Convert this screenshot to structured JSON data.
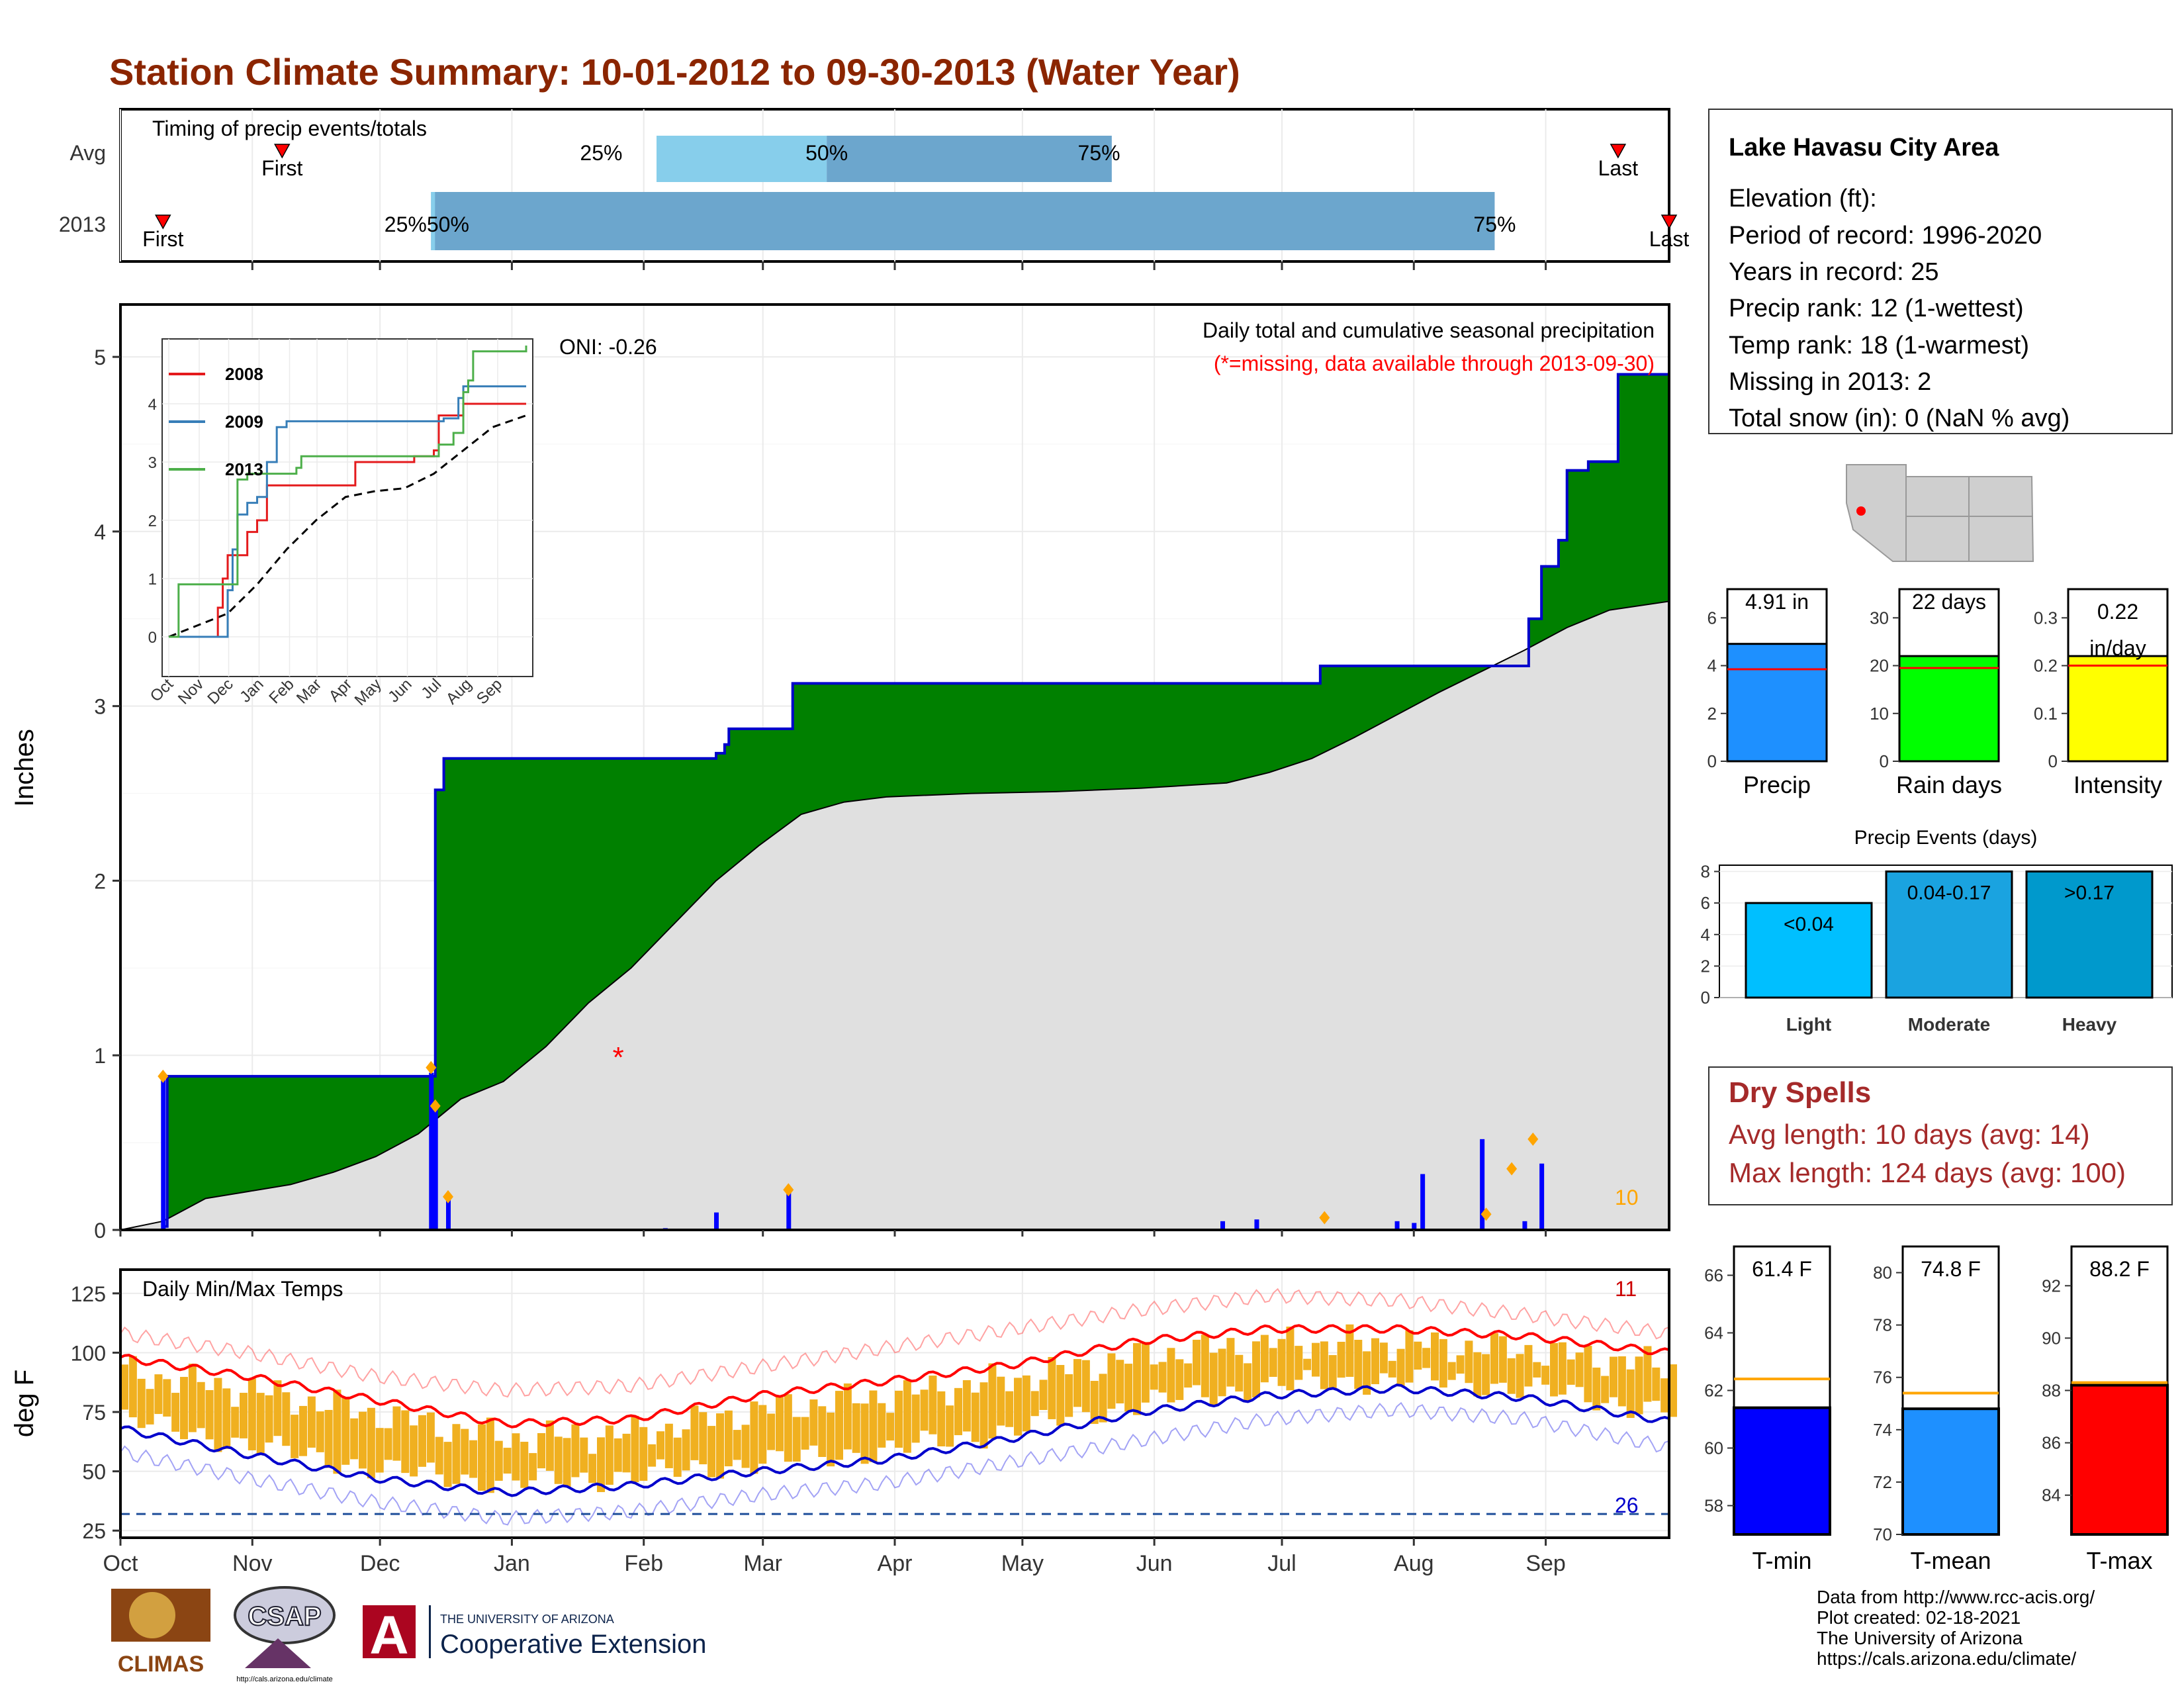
{
  "title": "Station Climate Summary: 10-01-2012 to 09-30-2013 (Water Year)",
  "colors": {
    "title": "#8b2500",
    "precip_area": "#008000",
    "normal_area": "#e0e0e0",
    "cum_line": "#0000cc",
    "bar": "#0000ff",
    "diamond": "#ffa500",
    "tmax": "#ff0000",
    "tmin": "#0000cc",
    "temp_bar": "#f0b020",
    "dry": "#a52a2a"
  },
  "timing": {
    "title": "Timing of precip events/totals",
    "rows": [
      "Avg",
      "2013"
    ],
    "avg": {
      "first_day": 38,
      "last_day": 352,
      "q25": 126,
      "q50": 166,
      "q75": 233,
      "first_label": "First",
      "last_label": "Last",
      "q25_label": "25%",
      "q50_label": "50%",
      "q75_label": "75%"
    },
    "y2013": {
      "first_day": 10,
      "last_day": 364,
      "q_start": 73,
      "q75": 323,
      "first_label": "First",
      "last_label": "Last",
      "q_label": "25%50%",
      "q75_label": "75%"
    }
  },
  "months": [
    "Oct",
    "Nov",
    "Dec",
    "Jan",
    "Feb",
    "Mar",
    "Apr",
    "May",
    "Jun",
    "Jul",
    "Aug",
    "Sep"
  ],
  "month_starts": [
    0,
    31,
    61,
    92,
    123,
    151,
    182,
    212,
    243,
    273,
    304,
    335
  ],
  "precip_panel": {
    "ylabel": "Inches",
    "yticks": [
      0,
      1,
      2,
      3,
      4,
      5
    ],
    "ymax": 5.3,
    "oni": "ONI: -0.26",
    "subtitle": "Daily total and cumulative seasonal precipitation",
    "note": "(*=missing, data available through 2013-09-30)",
    "count_label": "10",
    "missing_marker": {
      "day": 117,
      "value": 1.0
    },
    "cum_2013": [
      [
        0,
        0
      ],
      [
        10,
        0.02
      ],
      [
        11,
        0.88
      ],
      [
        73,
        0.88
      ],
      [
        74,
        2.52
      ],
      [
        76,
        2.7
      ],
      [
        140,
        2.73
      ],
      [
        142,
        2.78
      ],
      [
        143,
        2.87
      ],
      [
        157,
        2.87
      ],
      [
        158,
        3.13
      ],
      [
        280,
        3.13
      ],
      [
        282,
        3.23
      ],
      [
        330,
        3.23
      ],
      [
        331,
        3.5
      ],
      [
        334,
        3.8
      ],
      [
        338,
        3.95
      ],
      [
        340,
        4.35
      ],
      [
        345,
        4.4
      ],
      [
        352,
        4.9
      ],
      [
        364,
        4.91
      ]
    ],
    "avg_cum": [
      [
        0,
        0
      ],
      [
        10,
        0.05
      ],
      [
        20,
        0.18
      ],
      [
        30,
        0.22
      ],
      [
        40,
        0.26
      ],
      [
        50,
        0.33
      ],
      [
        60,
        0.42
      ],
      [
        70,
        0.55
      ],
      [
        80,
        0.75
      ],
      [
        90,
        0.85
      ],
      [
        100,
        1.05
      ],
      [
        110,
        1.3
      ],
      [
        120,
        1.5
      ],
      [
        130,
        1.75
      ],
      [
        140,
        2.0
      ],
      [
        150,
        2.2
      ],
      [
        160,
        2.38
      ],
      [
        170,
        2.45
      ],
      [
        180,
        2.48
      ],
      [
        200,
        2.5
      ],
      [
        220,
        2.51
      ],
      [
        240,
        2.53
      ],
      [
        260,
        2.56
      ],
      [
        270,
        2.62
      ],
      [
        280,
        2.7
      ],
      [
        290,
        2.82
      ],
      [
        300,
        2.95
      ],
      [
        310,
        3.08
      ],
      [
        320,
        3.2
      ],
      [
        330,
        3.32
      ],
      [
        340,
        3.45
      ],
      [
        350,
        3.55
      ],
      [
        364,
        3.6
      ]
    ],
    "daily_bars": [
      [
        10,
        0.86
      ],
      [
        73,
        0.9
      ],
      [
        74,
        0.7
      ],
      [
        77,
        0.18
      ],
      [
        128,
        0.01
      ],
      [
        140,
        0.1
      ],
      [
        157,
        0.22
      ],
      [
        259,
        0.05
      ],
      [
        267,
        0.06
      ],
      [
        300,
        0.05
      ],
      [
        304,
        0.04
      ],
      [
        306,
        0.32
      ],
      [
        320,
        0.52
      ],
      [
        330,
        0.05
      ],
      [
        334,
        0.38
      ]
    ],
    "diamonds": [
      [
        10,
        0.88
      ],
      [
        73,
        0.93
      ],
      [
        74,
        0.71
      ],
      [
        77,
        0.19
      ],
      [
        157,
        0.23
      ],
      [
        283,
        0.07
      ],
      [
        321,
        0.09
      ],
      [
        327,
        0.35
      ],
      [
        332,
        0.52
      ]
    ]
  },
  "inset": {
    "series": [
      {
        "name": "2008",
        "color": "#e41a1c",
        "points": [
          [
            0,
            0
          ],
          [
            40,
            0
          ],
          [
            50,
            0.5
          ],
          [
            55,
            1.0
          ],
          [
            60,
            1.4
          ],
          [
            75,
            1.4
          ],
          [
            80,
            1.8
          ],
          [
            90,
            2.0
          ],
          [
            100,
            2.6
          ],
          [
            150,
            2.6
          ],
          [
            190,
            3.0
          ],
          [
            250,
            3.1
          ],
          [
            270,
            3.2
          ],
          [
            275,
            3.8
          ],
          [
            300,
            4.0
          ],
          [
            364,
            4.0
          ]
        ]
      },
      {
        "name": "2009",
        "color": "#377eb8",
        "points": [
          [
            0,
            0
          ],
          [
            55,
            0
          ],
          [
            60,
            0.8
          ],
          [
            65,
            1.5
          ],
          [
            70,
            2.1
          ],
          [
            80,
            2.3
          ],
          [
            90,
            2.4
          ],
          [
            100,
            3.0
          ],
          [
            110,
            3.6
          ],
          [
            120,
            3.7
          ],
          [
            190,
            3.7
          ],
          [
            280,
            3.75
          ],
          [
            295,
            4.1
          ],
          [
            300,
            4.3
          ],
          [
            364,
            4.3
          ]
        ]
      },
      {
        "name": "2013",
        "color": "#4daf4a",
        "points": [
          [
            0,
            0
          ],
          [
            10,
            0.9
          ],
          [
            65,
            0.9
          ],
          [
            70,
            2.7
          ],
          [
            80,
            2.8
          ],
          [
            130,
            2.9
          ],
          [
            135,
            3.1
          ],
          [
            250,
            3.1
          ],
          [
            275,
            3.3
          ],
          [
            290,
            3.5
          ],
          [
            300,
            4.2
          ],
          [
            305,
            4.4
          ],
          [
            310,
            4.9
          ],
          [
            364,
            5.0
          ]
        ]
      }
    ],
    "avg": [
      [
        0,
        0
      ],
      [
        30,
        0.2
      ],
      [
        60,
        0.4
      ],
      [
        90,
        0.9
      ],
      [
        120,
        1.5
      ],
      [
        150,
        2.0
      ],
      [
        180,
        2.4
      ],
      [
        210,
        2.5
      ],
      [
        240,
        2.55
      ],
      [
        270,
        2.8
      ],
      [
        300,
        3.2
      ],
      [
        330,
        3.6
      ],
      [
        364,
        3.8
      ]
    ],
    "yticks": [
      0,
      1,
      2,
      3,
      4
    ],
    "xticks": [
      "Oct",
      "Nov",
      "Dec",
      "Jan",
      "Feb",
      "Mar",
      "Apr",
      "May",
      "Jun",
      "Jul",
      "Aug",
      "Sep"
    ]
  },
  "temp_panel": {
    "ylabel": "deg F",
    "title": "Daily Min/Max Temps",
    "yticks": [
      25,
      50,
      75,
      100,
      125
    ],
    "count_hot": "11",
    "count_cold": "26",
    "freeze_line": 32,
    "tmax_mean": [
      [
        0,
        98
      ],
      [
        30,
        90
      ],
      [
        60,
        80
      ],
      [
        90,
        70
      ],
      [
        120,
        72
      ],
      [
        150,
        82
      ],
      [
        180,
        88
      ],
      [
        210,
        95
      ],
      [
        240,
        105
      ],
      [
        270,
        110
      ],
      [
        300,
        110
      ],
      [
        330,
        107
      ],
      [
        364,
        100
      ]
    ],
    "tmin_mean": [
      [
        0,
        68
      ],
      [
        30,
        57
      ],
      [
        60,
        47
      ],
      [
        90,
        41
      ],
      [
        120,
        44
      ],
      [
        150,
        50
      ],
      [
        180,
        55
      ],
      [
        210,
        64
      ],
      [
        240,
        75
      ],
      [
        270,
        82
      ],
      [
        300,
        85
      ],
      [
        330,
        81
      ],
      [
        364,
        71
      ]
    ],
    "tmax_rec": [
      [
        0,
        108
      ],
      [
        30,
        100
      ],
      [
        60,
        90
      ],
      [
        90,
        84
      ],
      [
        120,
        86
      ],
      [
        150,
        94
      ],
      [
        180,
        102
      ],
      [
        210,
        110
      ],
      [
        240,
        118
      ],
      [
        270,
        124
      ],
      [
        300,
        122
      ],
      [
        330,
        116
      ],
      [
        364,
        108
      ]
    ],
    "tmin_rec": [
      [
        0,
        58
      ],
      [
        30,
        47
      ],
      [
        60,
        37
      ],
      [
        90,
        30
      ],
      [
        120,
        33
      ],
      [
        150,
        40
      ],
      [
        180,
        45
      ],
      [
        210,
        54
      ],
      [
        240,
        63
      ],
      [
        270,
        72
      ],
      [
        300,
        76
      ],
      [
        330,
        72
      ],
      [
        364,
        60
      ]
    ]
  },
  "station": {
    "name": "Lake Havasu City Area",
    "lines": [
      "Elevation (ft):",
      "Period of record: 1996-2020",
      "Years in record: 25",
      "Precip rank: 12 (1-wettest)",
      "Temp rank: 18 (1-warmest)",
      "Missing in 2013: 2",
      "Total snow (in): 0 (NaN % avg)"
    ]
  },
  "summary_bars": [
    {
      "label": "Precip",
      "value": 4.91,
      "avg": 3.85,
      "ymax": 7.2,
      "yticks": [
        0,
        2,
        4,
        6
      ],
      "text": "4.91 in",
      "color": "#1e90ff"
    },
    {
      "label": "Rain days",
      "value": 22,
      "avg": 19.5,
      "ymax": 36,
      "yticks": [
        0,
        10,
        20,
        30
      ],
      "text": "22 days",
      "color": "#00ff00"
    },
    {
      "label": "Intensity",
      "value": 0.22,
      "avg": 0.2,
      "ymax": 0.36,
      "yticks": [
        0.0,
        0.1,
        0.2,
        0.3
      ],
      "text": "0.22 in/day",
      "color": "#ffff00"
    }
  ],
  "events": {
    "title": "Precip Events (days)",
    "yticks": [
      0,
      2,
      4,
      6,
      8
    ],
    "bars": [
      {
        "label": "Light",
        "value": 6,
        "text": "<0.04",
        "color": "#00bfff"
      },
      {
        "label": "Moderate",
        "value": 8,
        "text": "0.04-0.17",
        "color": "#1aa3e0"
      },
      {
        "label": "Heavy",
        "value": 8,
        "text": ">0.17",
        "color": "#0099cc"
      }
    ]
  },
  "dry_spells": {
    "title": "Dry Spells",
    "avg_line": "Avg length: 10 days (avg: 14)",
    "max_line": "Max length: 124 days (avg: 100)"
  },
  "temp_bars": [
    {
      "label": "T-min",
      "value": 61.4,
      "avg": 62.4,
      "ymin": 57,
      "ymax": 67,
      "yticks": [
        58,
        60,
        62,
        64,
        66
      ],
      "text": "61.4 F",
      "color": "#0000ff"
    },
    {
      "label": "T-mean",
      "value": 74.8,
      "avg": 75.4,
      "ymin": 70,
      "ymax": 81,
      "yticks": [
        70,
        72,
        74,
        76,
        78,
        80
      ],
      "text": "74.8 F",
      "color": "#1e90ff"
    },
    {
      "label": "T-max",
      "value": 88.2,
      "avg": 88.3,
      "ymin": 82.5,
      "ymax": 93.5,
      "yticks": [
        84,
        86,
        88,
        90,
        92
      ],
      "text": "88.2 F",
      "color": "#ff0000"
    }
  ],
  "logos": {
    "climas": "CLIMAS",
    "csap": "CSAP",
    "csap_url": "http://cals.arizona.edu/climate",
    "ua_small": "THE UNIVERSITY OF ARIZONA",
    "ua_big": "Cooperative Extension"
  },
  "credits": [
    "Data from http://www.rcc-acis.org/",
    "Plot created: 02-18-2021",
    "The University of Arizona",
    "https://cals.arizona.edu/climate/"
  ]
}
